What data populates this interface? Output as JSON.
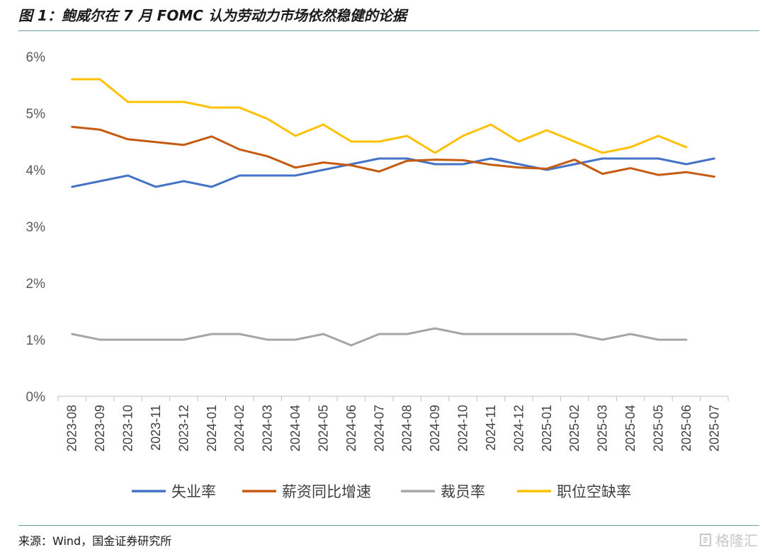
{
  "figure": {
    "title": "图 1：鲍威尔在 7 月 FOMC 认为劳动力市场依然稳健的论据",
    "source": "来源：Wind，国金证券研究所",
    "watermark": "格隆汇",
    "watermark_icon": "glh-logo-icon"
  },
  "chart_data": {
    "type": "line",
    "title": "",
    "xlabel": "",
    "ylabel": "",
    "y_unit": "%",
    "ylim": [
      0,
      6
    ],
    "yticks": [
      0,
      1,
      2,
      3,
      4,
      5,
      6
    ],
    "ytick_labels": [
      "0%",
      "1%",
      "2%",
      "3%",
      "4%",
      "5%",
      "6%"
    ],
    "grid": false,
    "legend_position": "bottom",
    "categories": [
      "2023-08",
      "2023-09",
      "2023-10",
      "2023-11",
      "2023-12",
      "2024-01",
      "2024-02",
      "2024-03",
      "2024-04",
      "2024-05",
      "2024-06",
      "2024-07",
      "2024-08",
      "2024-09",
      "2024-10",
      "2024-11",
      "2024-12",
      "2025-01",
      "2025-02",
      "2025-03",
      "2025-04",
      "2025-05",
      "2025-06",
      "2025-07"
    ],
    "series": [
      {
        "name": "失业率",
        "color": "#4472c4",
        "values": [
          3.7,
          3.8,
          3.9,
          3.7,
          3.8,
          3.7,
          3.9,
          3.9,
          3.9,
          4.0,
          4.1,
          4.2,
          4.2,
          4.1,
          4.1,
          4.2,
          4.1,
          4.0,
          4.1,
          4.2,
          4.2,
          4.2,
          4.1,
          4.2
        ]
      },
      {
        "name": "薪资同比增速",
        "color": "#c55a11",
        "values": [
          4.76,
          4.71,
          4.54,
          4.49,
          4.44,
          4.59,
          4.36,
          4.24,
          4.04,
          4.13,
          4.08,
          3.97,
          4.16,
          4.18,
          4.17,
          4.09,
          4.04,
          4.02,
          4.18,
          3.93,
          4.03,
          3.91,
          3.96,
          3.88
        ]
      },
      {
        "name": "裁员率",
        "color": "#a5a5a5",
        "values": [
          1.1,
          1.0,
          1.0,
          1.0,
          1.0,
          1.1,
          1.1,
          1.0,
          1.0,
          1.1,
          0.9,
          1.1,
          1.1,
          1.2,
          1.1,
          1.1,
          1.1,
          1.1,
          1.1,
          1.0,
          1.1,
          1.0,
          1.0,
          null
        ]
      },
      {
        "name": "职位空缺率",
        "color": "#ffc000",
        "values": [
          5.6,
          5.6,
          5.2,
          5.2,
          5.2,
          5.1,
          5.1,
          4.9,
          4.6,
          4.8,
          4.5,
          4.5,
          4.6,
          4.3,
          4.6,
          4.8,
          4.5,
          4.7,
          4.5,
          4.3,
          4.4,
          4.6,
          4.4,
          null
        ]
      }
    ]
  }
}
